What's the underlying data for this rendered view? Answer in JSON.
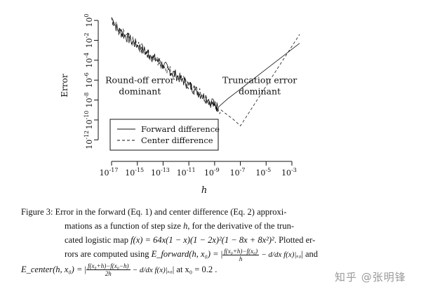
{
  "chart_data": {
    "type": "line",
    "xlabel": "h",
    "ylabel": "Error",
    "xscale": "log10",
    "yscale": "log10",
    "xlim_exp": [
      -17.6,
      -1.8
    ],
    "ylim_exp": [
      -13.6,
      0.5
    ],
    "x_ticks": [
      {
        "label_base": "10",
        "label_exp": "-17",
        "exp": -17
      },
      {
        "label_base": "10",
        "label_exp": "-15",
        "exp": -15
      },
      {
        "label_base": "10",
        "label_exp": "-13",
        "exp": -13
      },
      {
        "label_base": "10",
        "label_exp": "-11",
        "exp": -11
      },
      {
        "label_base": "10",
        "label_exp": "-9",
        "exp": -9
      },
      {
        "label_base": "10",
        "label_exp": "-7",
        "exp": -7
      },
      {
        "label_base": "10",
        "label_exp": "-5",
        "exp": -5
      },
      {
        "label_base": "10",
        "label_exp": "-3",
        "exp": -3
      }
    ],
    "y_ticks": [
      {
        "label_base": "10",
        "label_exp": "0",
        "exp": 0
      },
      {
        "label_base": "10",
        "label_exp": "-2",
        "exp": -2
      },
      {
        "label_base": "10",
        "label_exp": "-4",
        "exp": -4
      },
      {
        "label_base": "10",
        "label_exp": "-6",
        "exp": -6
      },
      {
        "label_base": "10",
        "label_exp": "-8",
        "exp": -8
      },
      {
        "label_base": "10",
        "label_exp": "-10",
        "exp": -10
      },
      {
        "label_base": "10",
        "label_exp": "-12",
        "exp": -12
      }
    ],
    "legend_position": "bottom-left",
    "series": [
      {
        "name": "Forward difference",
        "linestyle": "solid",
        "x_exp": [
          -17.0,
          -16.5,
          -16.0,
          -15.5,
          -15.0,
          -14.5,
          -14.0,
          -13.5,
          -13.0,
          -12.5,
          -12.0,
          -11.5,
          -11.0,
          -10.5,
          -10.0,
          -9.5,
          -9.0,
          -8.7,
          -8.0,
          -7.0,
          -6.0,
          -5.0,
          -4.0,
          -3.0,
          -2.4
        ],
        "y_exp": [
          0.3,
          -1.0,
          -1.5,
          -2.0,
          -2.5,
          -3.0,
          -3.5,
          -4.0,
          -4.5,
          -5.0,
          -5.5,
          -6.0,
          -6.5,
          -7.0,
          -7.5,
          -8.0,
          -8.6,
          -8.7,
          -7.9,
          -6.9,
          -5.9,
          -4.9,
          -3.9,
          -2.9,
          -2.3
        ]
      },
      {
        "name": "Center difference",
        "linestyle": "dashed",
        "x_exp": [
          -17.0,
          -16.5,
          -16.0,
          -15.5,
          -15.0,
          -14.5,
          -14.0,
          -13.5,
          -13.0,
          -12.5,
          -12.0,
          -11.5,
          -11.0,
          -10.5,
          -10.0,
          -9.5,
          -9.0,
          -8.5,
          -8.0,
          -7.5,
          -7.0,
          -6.0,
          -5.0,
          -4.0,
          -3.0,
          -2.4
        ],
        "y_exp": [
          0.3,
          -1.0,
          -1.5,
          -2.0,
          -2.5,
          -3.0,
          -3.5,
          -4.0,
          -4.5,
          -5.0,
          -5.5,
          -6.0,
          -6.5,
          -7.0,
          -7.5,
          -8.0,
          -8.5,
          -9.0,
          -9.5,
          -10.0,
          -10.6,
          -8.6,
          -6.6,
          -4.6,
          -2.6,
          -1.4
        ]
      }
    ],
    "annotations": [
      {
        "lines": [
          "Round-off error",
          "dominant"
        ],
        "x_exp": -14.8,
        "y_exp": -6.3
      },
      {
        "lines": [
          "Truncation error",
          "dominant"
        ],
        "x_exp": -5.5,
        "y_exp": -6.3
      }
    ]
  },
  "caption": {
    "label": "Figure 3:",
    "line1": "Error in the forward (Eq. 1) and center difference (Eq. 2) approxi-",
    "line2a": "mations as a function of step size ",
    "line2b": "h",
    "line2c": ", for the derivative of the trun-",
    "line3a": "cated logistic map ",
    "line3b": "f(x) = 64x(1 − x)(1 − 2x)²(1 − 8x + 8x²)²",
    "line3c": ". Plotted er-",
    "line4a": "rors are computed using ",
    "line4b": "E_forward(h, x₀) =",
    "line4c": "f(x₀+h)−f(x₀)",
    "line4d": "h",
    "line4e": "− d/dx f(x)|ₓ₀",
    "line4f": "and",
    "line5a": "E_center(h, x₀) =",
    "line5b": "f(x₀+h)−f(x₀−h)",
    "line5c": "2h",
    "line5d": "− d/dx f(x)|ₓ₀",
    "line5e": "at x₀ = 0.2 ."
  },
  "watermark": "知乎 @张明锋"
}
